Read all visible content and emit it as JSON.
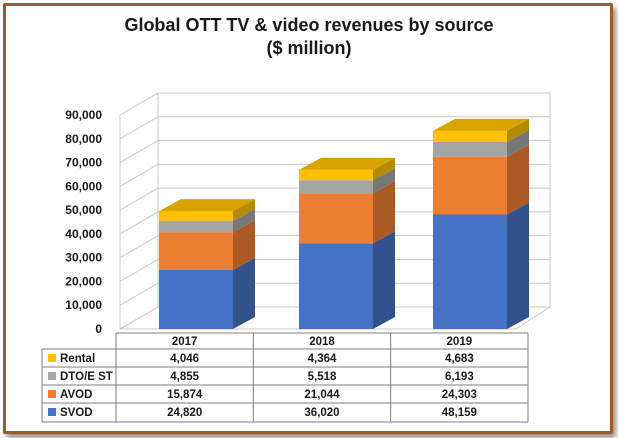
{
  "chart_data": {
    "type": "bar",
    "stacked": true,
    "title": "Global OTT TV & video revenues by source",
    "subtitle": "($ million)",
    "categories": [
      "2017",
      "2018",
      "2019"
    ],
    "series": [
      {
        "name": "SVOD",
        "values": [
          24820,
          36020,
          48159
        ],
        "color": "#4472c4",
        "labels": [
          "24,820",
          "36,020",
          "48,159"
        ]
      },
      {
        "name": "AVOD",
        "values": [
          15874,
          21044,
          24303
        ],
        "color": "#ed7d31",
        "labels": [
          "15,874",
          "21,044",
          "24,303"
        ]
      },
      {
        "name": "DTO/E ST",
        "values": [
          4855,
          5518,
          6193
        ],
        "color": "#a5a5a5",
        "labels": [
          "4,855",
          "5,518",
          "6,193"
        ]
      },
      {
        "name": "Rental",
        "values": [
          4046,
          4364,
          4683
        ],
        "color": "#ffc000",
        "labels": [
          "4,046",
          "4,364",
          "4,683"
        ]
      }
    ],
    "yticks": [
      "0",
      "10,000",
      "20,000",
      "30,000",
      "40,000",
      "50,000",
      "60,000",
      "70,000",
      "80,000",
      "90,000"
    ],
    "ylim": [
      0,
      90000
    ],
    "grid": true,
    "legend": "data-table",
    "style": "3d"
  }
}
